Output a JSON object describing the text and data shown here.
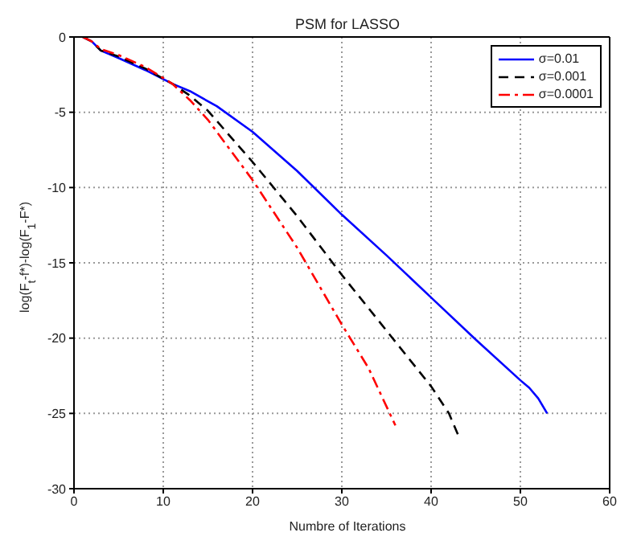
{
  "chart_data": {
    "type": "line",
    "title": "PSM for LASSO",
    "xlabel": "Numbre of Iterations",
    "ylabel": "log(F$_{t}$-f*)-log(F$_{1}$-F*)",
    "xlim": [
      0,
      60
    ],
    "xticks": [
      0,
      10,
      20,
      30,
      40,
      50,
      60
    ],
    "ylim": [
      -30,
      0
    ],
    "yticks": [
      -30,
      -25,
      -20,
      -15,
      -10,
      -5,
      0
    ],
    "grid": true,
    "legend": "top right",
    "marker": "none",
    "series": [
      {
        "name": "σ=0.01",
        "color": "#0000ff",
        "line_style": "solid",
        "x": [
          1,
          2,
          3,
          5,
          8,
          11,
          13,
          16,
          20,
          25,
          30,
          35,
          40,
          45,
          50,
          51,
          52,
          53
        ],
        "values": [
          0,
          -0.3,
          -0.9,
          -1.4,
          -2.2,
          -3.1,
          -3.6,
          -4.6,
          -6.3,
          -8.9,
          -11.8,
          -14.5,
          -17.3,
          -20.1,
          -22.8,
          -23.3,
          -24.0,
          -25.0
        ]
      },
      {
        "name": "σ=0.001",
        "color": "#000000",
        "line_style": "dashed",
        "x": [
          1,
          2,
          3,
          5,
          8,
          11,
          13,
          15,
          20,
          25,
          30,
          35,
          40,
          42,
          43
        ],
        "values": [
          0,
          -0.3,
          -0.9,
          -1.3,
          -2.1,
          -3.1,
          -3.9,
          -4.9,
          -8.3,
          -11.9,
          -15.8,
          -19.5,
          -23.2,
          -25.0,
          -26.4
        ]
      },
      {
        "name": "σ=0.0001",
        "color": "#ff0000",
        "line_style": "dashdot",
        "x": [
          1,
          2,
          3,
          5,
          8,
          11,
          13,
          15,
          20,
          25,
          30,
          33,
          36
        ],
        "values": [
          0,
          -0.3,
          -0.8,
          -1.2,
          -2.0,
          -3.1,
          -4.2,
          -5.5,
          -9.5,
          -14.0,
          -19.1,
          -22.0,
          -25.8
        ]
      }
    ]
  }
}
